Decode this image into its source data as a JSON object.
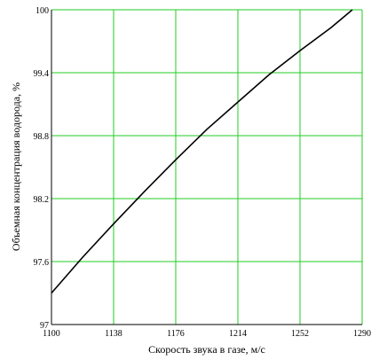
{
  "chart_data": {
    "type": "line",
    "x_label": "Скорость звука в газе, м/с",
    "y_label": "Объемная концентрация водорода, %",
    "x": [
      1100,
      1119,
      1138,
      1157,
      1176,
      1195,
      1214,
      1233,
      1252,
      1271,
      1284
    ],
    "values": [
      97.3,
      97.64,
      97.96,
      98.27,
      98.57,
      98.86,
      99.12,
      99.38,
      99.61,
      99.83,
      100.0
    ],
    "color": "#000000",
    "grid_color": "#22cc22",
    "grid": true,
    "xlim": [
      1100,
      1290
    ],
    "xticks": [
      1100,
      1138,
      1176,
      1214,
      1252,
      1290
    ],
    "ylim": [
      97,
      100
    ],
    "yticks": [
      97,
      97.6,
      98.2,
      98.8,
      99.4,
      100
    ]
  }
}
